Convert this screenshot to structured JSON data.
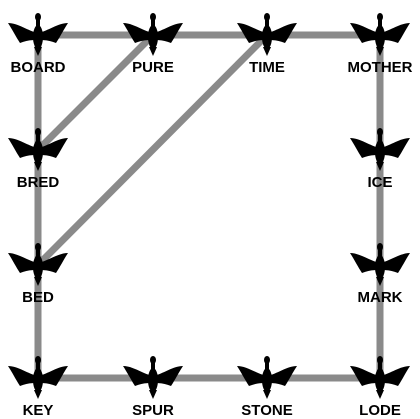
{
  "edge_color": "#8a8a8a",
  "bird_color": "#000000",
  "bird_icon": "bird-silhouette-icon",
  "nodes": [
    {
      "id": "board",
      "label": "BOARD"
    },
    {
      "id": "pure",
      "label": "PURE"
    },
    {
      "id": "time",
      "label": "TIME"
    },
    {
      "id": "mother",
      "label": "MOTHER"
    },
    {
      "id": "bred",
      "label": "BRED"
    },
    {
      "id": "ice",
      "label": "ICE"
    },
    {
      "id": "bed",
      "label": "BED"
    },
    {
      "id": "mark",
      "label": "MARK"
    },
    {
      "id": "key",
      "label": "KEY"
    },
    {
      "id": "spur",
      "label": "SPUR"
    },
    {
      "id": "stone",
      "label": "STONE"
    },
    {
      "id": "lode",
      "label": "LODE"
    }
  ],
  "edges": [
    [
      "board",
      "pure"
    ],
    [
      "pure",
      "time"
    ],
    [
      "time",
      "mother"
    ],
    [
      "board",
      "bred"
    ],
    [
      "bred",
      "bed"
    ],
    [
      "bed",
      "key"
    ],
    [
      "key",
      "spur"
    ],
    [
      "spur",
      "stone"
    ],
    [
      "stone",
      "lode"
    ],
    [
      "mother",
      "ice"
    ],
    [
      "ice",
      "mark"
    ],
    [
      "mark",
      "lode"
    ],
    [
      "bred",
      "pure"
    ],
    [
      "bed",
      "time"
    ]
  ]
}
